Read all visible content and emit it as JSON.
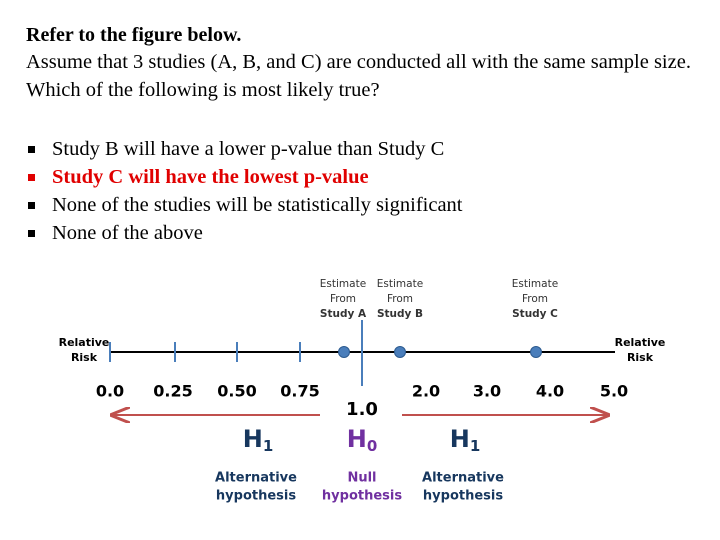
{
  "header": {
    "title": "Refer to the figure below."
  },
  "question": "Assume that 3 studies (A, B, and C) are conducted all with the same sample size. Which of the following is most likely true?",
  "options": [
    {
      "text": "Study B will have a lower p-value than Study C",
      "color": "#000000"
    },
    {
      "text": "Study C will have the lowest p-value",
      "color": "#e00000"
    },
    {
      "text": "None of the studies will be statistically significant",
      "color": "#000000"
    },
    {
      "text": "None of the above",
      "color": "#000000"
    }
  ],
  "figure": {
    "axis_label_left": [
      "Relative",
      "Risk"
    ],
    "axis_label_right": [
      "Relative",
      "Risk"
    ],
    "tick_labels": [
      "0.0",
      "0.25",
      "0.50",
      "0.75",
      "1.0",
      "2.0",
      "3.0",
      "4.0",
      "5.0"
    ],
    "estimates": [
      {
        "lines": [
          "Estimate",
          "From",
          "Study A"
        ]
      },
      {
        "lines": [
          "Estimate",
          "From",
          "Study B"
        ]
      },
      {
        "lines": [
          "Estimate",
          "From",
          "Study C"
        ]
      }
    ],
    "hypotheses": [
      {
        "symbol": "H",
        "subscript": "1",
        "label": [
          "Alternative",
          "hypothesis"
        ],
        "color": "#17375e"
      },
      {
        "symbol": "H",
        "subscript": "0",
        "label": [
          "Null",
          "hypothesis"
        ],
        "color": "#7030a0"
      },
      {
        "symbol": "H",
        "subscript": "1",
        "label": [
          "Alternative",
          "hypothesis"
        ],
        "color": "#17375e"
      }
    ]
  }
}
